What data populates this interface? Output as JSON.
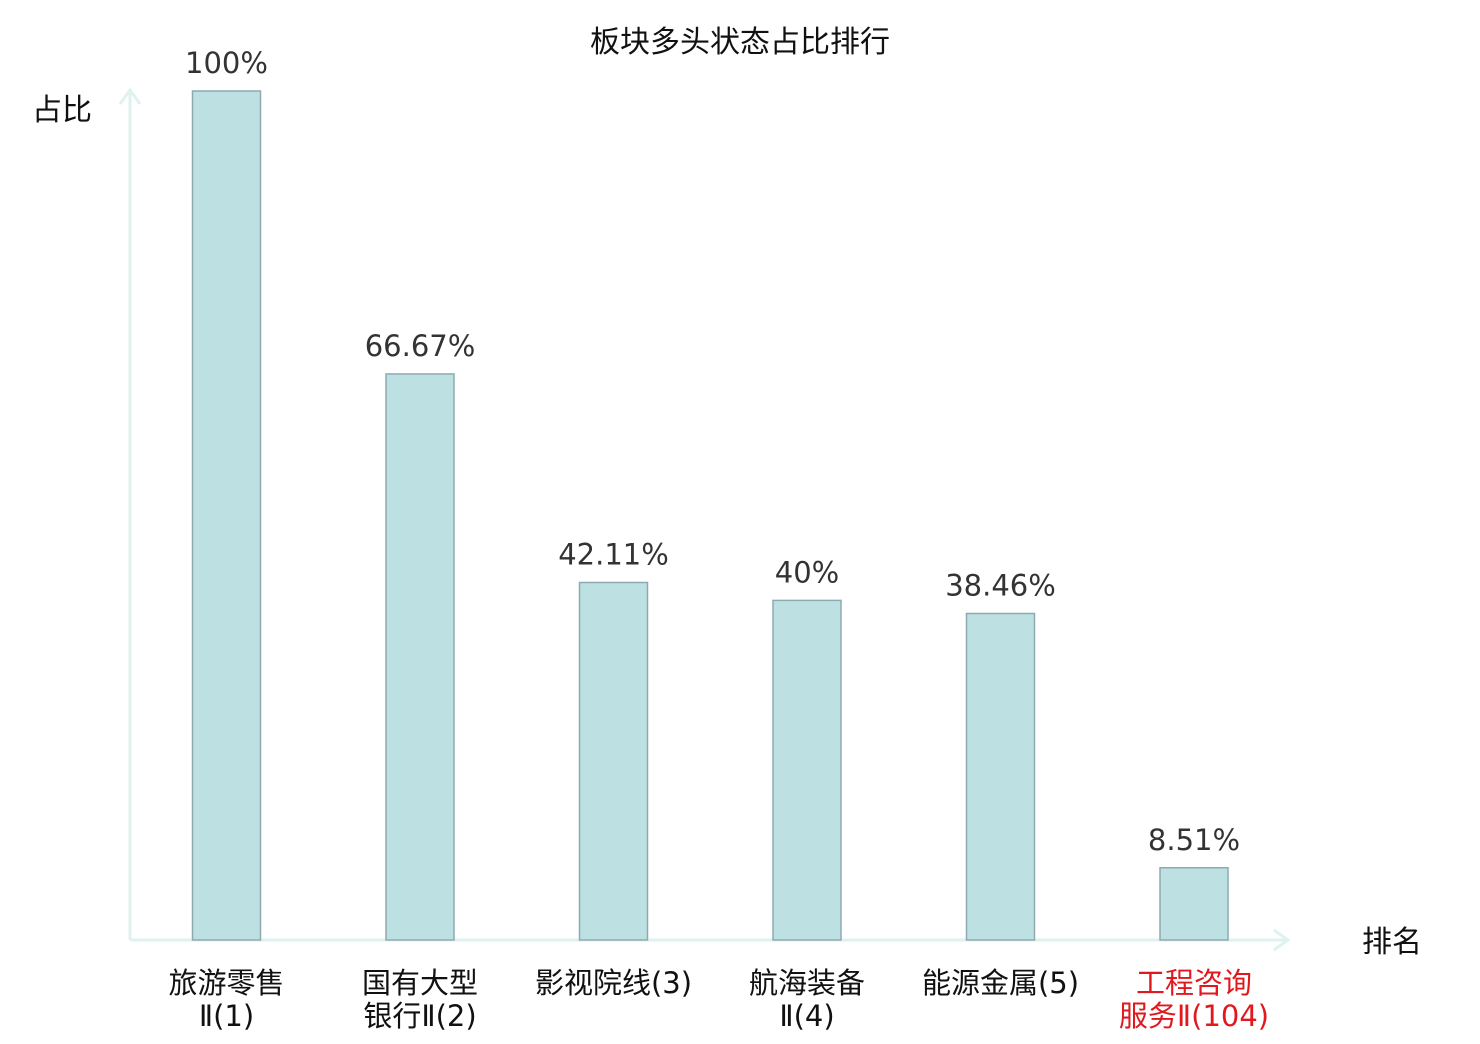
{
  "chart_data": {
    "type": "bar",
    "title": "板块多头状态占比排行",
    "ylabel": "占比",
    "xlabel": "排名",
    "ylim": [
      0,
      100
    ],
    "grid": false,
    "categories": [
      [
        "旅游零售",
        "Ⅱ(1)"
      ],
      [
        "国有大型",
        "银行Ⅱ(2)"
      ],
      [
        "影视院线(3)"
      ],
      [
        "航海装备",
        "Ⅱ(4)"
      ],
      [
        "能源金属(5)"
      ],
      [
        "工程咨询",
        "服务Ⅱ(104)"
      ]
    ],
    "values": [
      100,
      66.67,
      42.11,
      40,
      38.46,
      8.51
    ],
    "value_labels": [
      "100%",
      "66.67%",
      "42.11%",
      "40%",
      "38.46%",
      "8.51%"
    ],
    "highlight_index": 5
  },
  "colors": {
    "bar_fill": "#bde0e3",
    "bar_stroke": "#8eaab0",
    "axis": "#dff2ef",
    "text": "#333333",
    "highlight_text": "#e0191e"
  }
}
